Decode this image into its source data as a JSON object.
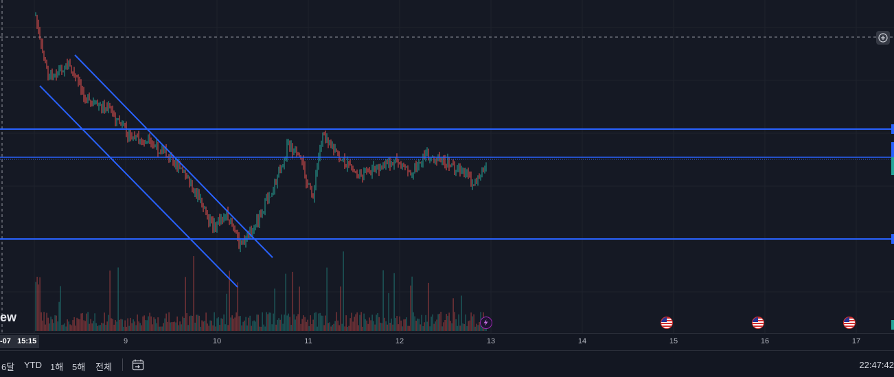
{
  "time_axis": {
    "ticks": [
      "9",
      "10",
      "11",
      "12",
      "13",
      "14",
      "15",
      "16",
      "17"
    ],
    "crosshair_date": "-07",
    "crosshair_time": "15:15"
  },
  "branding": {
    "logo_partial": "ew"
  },
  "toolbar": {
    "ranges": [
      "6달",
      "YTD",
      "1해",
      "5해",
      "전체"
    ],
    "goto_icon": "calendar-goto-icon",
    "clock": "22:47:42"
  },
  "events": [
    {
      "icon": "lightning-icon",
      "color": "#9c27b0"
    },
    {
      "icon": "us-flag-icon"
    },
    {
      "icon": "us-flag-icon"
    },
    {
      "icon": "us-flag-icon"
    }
  ],
  "colors": {
    "background": "#151924",
    "up_candle": "#26a69a",
    "down_candle": "#ef5350",
    "drawing_lines": "#2962ff",
    "grid": "#1e222d"
  }
}
